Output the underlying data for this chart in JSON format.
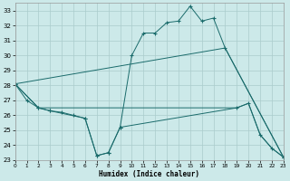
{
  "xlabel": "Humidex (Indice chaleur)",
  "bg_color": "#cce9e9",
  "grid_color": "#aacccc",
  "line_color": "#1a6b6b",
  "xlim": [
    0,
    23
  ],
  "ylim": [
    23,
    33.5
  ],
  "xticks": [
    0,
    1,
    2,
    3,
    4,
    5,
    6,
    7,
    8,
    9,
    10,
    11,
    12,
    13,
    14,
    15,
    16,
    17,
    18,
    19,
    20,
    21,
    22,
    23
  ],
  "yticks": [
    23,
    24,
    25,
    26,
    27,
    28,
    29,
    30,
    31,
    32,
    33
  ],
  "series1": {
    "points": [
      [
        0,
        28.1
      ],
      [
        2,
        26.5
      ],
      [
        3,
        26.3
      ],
      [
        6,
        25.8
      ],
      [
        7,
        23.3
      ],
      [
        8,
        23.5
      ],
      [
        9,
        25.2
      ],
      [
        10,
        30.0
      ],
      [
        11,
        31.5
      ],
      [
        12,
        31.5
      ],
      [
        13,
        32.2
      ],
      [
        14,
        32.3
      ],
      [
        15,
        33.3
      ],
      [
        16,
        32.3
      ],
      [
        17,
        32.5
      ],
      [
        18,
        30.5
      ],
      [
        23,
        23.2
      ]
    ]
  },
  "series2": {
    "points": [
      [
        0,
        28.1
      ],
      [
        18,
        30.5
      ],
      [
        23,
        23.2
      ]
    ]
  },
  "series3": {
    "points": [
      [
        0,
        28.1
      ],
      [
        2,
        26.5
      ],
      [
        19,
        26.5
      ],
      [
        20,
        26.8
      ],
      [
        21,
        24.7
      ],
      [
        22,
        23.8
      ],
      [
        23,
        23.2
      ]
    ]
  },
  "series4": {
    "points": [
      [
        0,
        28.1
      ],
      [
        1,
        27.0
      ],
      [
        2,
        26.5
      ],
      [
        3,
        26.3
      ],
      [
        4,
        26.2
      ],
      [
        5,
        26.0
      ],
      [
        6,
        25.8
      ],
      [
        7,
        23.3
      ],
      [
        8,
        23.5
      ],
      [
        9,
        25.2
      ],
      [
        19,
        26.5
      ],
      [
        20,
        26.8
      ],
      [
        21,
        24.7
      ],
      [
        22,
        23.8
      ],
      [
        23,
        23.2
      ]
    ]
  }
}
